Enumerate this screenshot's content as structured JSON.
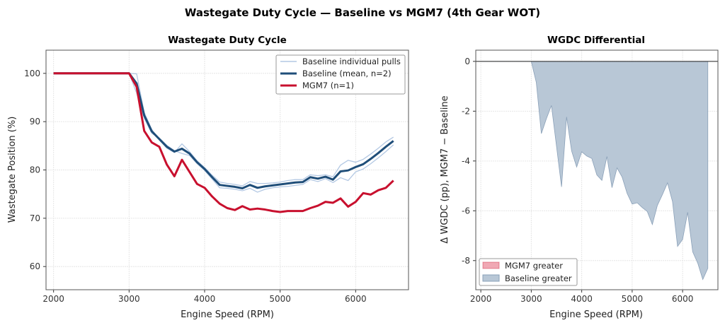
{
  "suptitle": "Wastegate Duty Cycle — Baseline vs MGM7 (4th Gear WOT)",
  "colors": {
    "baseline_pulls": "#b3c8e3",
    "baseline_mean": "#1f4e79",
    "mgm7": "#c8102e",
    "fill_baseline": "#b8c7d6",
    "fill_baseline_edge": "#8aa0b8",
    "fill_mgm7": "#f0a8b4"
  },
  "chart_data": [
    {
      "type": "line",
      "title": "Wastegate Duty Cycle",
      "xlabel": "Engine Speed (RPM)",
      "ylabel": "Wastegate Position (%)",
      "xlim": [
        1900,
        6700
      ],
      "ylim": [
        55.2,
        104.8
      ],
      "xticks": [
        2000,
        3000,
        4000,
        5000,
        6000
      ],
      "yticks": [
        60,
        70,
        80,
        90,
        100
      ],
      "grid": true,
      "legend_placement": "upper right",
      "x": [
        2000,
        2100,
        2200,
        2300,
        2400,
        2500,
        2600,
        2700,
        2800,
        2900,
        3000,
        3100,
        3200,
        3300,
        3400,
        3500,
        3600,
        3700,
        3800,
        3900,
        4000,
        4100,
        4200,
        4300,
        4400,
        4500,
        4600,
        4700,
        4800,
        4900,
        5000,
        5100,
        5200,
        5300,
        5400,
        5500,
        5600,
        5700,
        5800,
        5900,
        6000,
        6100,
        6200,
        6300,
        6400,
        6500
      ],
      "series": [
        {
          "name": "Baseline individual pulls",
          "key": "pull1",
          "values": [
            100,
            100,
            100,
            100,
            100,
            100,
            100,
            100,
            100,
            100,
            100,
            99.9,
            91.9,
            88.4,
            86.2,
            84.5,
            83.6,
            85.4,
            83.8,
            81.9,
            80.5,
            78.9,
            77.5,
            77.2,
            77.0,
            76.7,
            77.6,
            77.2,
            77.2,
            77.3,
            77.5,
            77.8,
            78.0,
            78.0,
            79.0,
            78.8,
            79.0,
            78.6,
            81.0,
            82.0,
            81.6,
            82.2,
            83.3,
            84.5,
            85.8,
            86.8
          ]
        },
        {
          "name": "",
          "key": "pull2",
          "values": [
            100,
            100,
            100,
            100,
            100,
            100,
            100,
            100,
            100,
            100,
            100,
            95.9,
            90.7,
            87.6,
            86.6,
            85.1,
            84.0,
            83.4,
            83.0,
            81.3,
            79.9,
            78.1,
            76.3,
            76.2,
            76.0,
            75.7,
            76.2,
            75.4,
            76.0,
            76.3,
            76.5,
            76.6,
            76.8,
            77.0,
            78.0,
            77.6,
            78.2,
            77.4,
            78.4,
            77.8,
            79.6,
            80.2,
            81.3,
            82.5,
            83.8,
            85.2
          ]
        },
        {
          "name": "Baseline (mean, n=2)",
          "key": "mean",
          "values": [
            100,
            100,
            100,
            100,
            100,
            100,
            100,
            100,
            100,
            100,
            100,
            97.9,
            91.3,
            88.0,
            86.4,
            84.8,
            83.8,
            84.4,
            83.4,
            81.6,
            80.2,
            78.5,
            76.9,
            76.7,
            76.5,
            76.2,
            76.9,
            76.3,
            76.6,
            76.8,
            77.0,
            77.2,
            77.4,
            77.5,
            78.5,
            78.2,
            78.6,
            78.0,
            79.7,
            79.9,
            80.6,
            81.2,
            82.3,
            83.5,
            84.8,
            86.0
          ]
        },
        {
          "name": "MGM7 (n=1)",
          "key": "mgm7",
          "values": [
            100,
            100,
            100,
            100,
            100,
            100,
            100,
            100,
            100,
            100,
            100,
            97.2,
            88.1,
            85.7,
            84.8,
            81.1,
            78.7,
            82.1,
            79.6,
            77.1,
            76.3,
            74.5,
            73.0,
            72.1,
            71.7,
            72.5,
            71.8,
            72.0,
            71.8,
            71.5,
            71.3,
            71.5,
            71.5,
            71.5,
            72.1,
            72.6,
            73.4,
            73.2,
            74.1,
            72.4,
            73.4,
            75.2,
            74.9,
            75.8,
            76.3,
            77.8
          ]
        }
      ]
    },
    {
      "type": "area",
      "title": "WGDC Differential",
      "xlabel": "Engine Speed (RPM)",
      "ylabel": "Δ WGDC (pp), MGM7 − Baseline",
      "xlim": [
        1900,
        6700
      ],
      "ylim": [
        -9.17,
        0.45
      ],
      "xticks": [
        2000,
        3000,
        4000,
        5000,
        6000
      ],
      "yticks": [
        0,
        -2,
        -4,
        -6,
        -8
      ],
      "grid": true,
      "zero_line": true,
      "legend_placement": "lower left",
      "legend": [
        "MGM7 greater",
        "Baseline greater"
      ],
      "x": [
        2000,
        2100,
        2200,
        2300,
        2400,
        2500,
        2600,
        2700,
        2800,
        2900,
        3000,
        3100,
        3200,
        3300,
        3400,
        3500,
        3600,
        3700,
        3800,
        3900,
        4000,
        4100,
        4200,
        4300,
        4400,
        4500,
        4600,
        4700,
        4800,
        4900,
        5000,
        5100,
        5200,
        5300,
        5400,
        5500,
        5600,
        5700,
        5800,
        5900,
        6000,
        6100,
        6200,
        6300,
        6400,
        6500
      ],
      "values": [
        0,
        0,
        0,
        0,
        0,
        0,
        0,
        0,
        0,
        0,
        0,
        -0.85,
        -2.9,
        -2.3,
        -1.77,
        -3.4,
        -5.04,
        -2.23,
        -3.6,
        -4.24,
        -3.63,
        -3.8,
        -3.9,
        -4.56,
        -4.78,
        -3.82,
        -5.07,
        -4.28,
        -4.64,
        -5.3,
        -5.73,
        -5.68,
        -5.87,
        -6.03,
        -6.55,
        -5.78,
        -5.35,
        -4.88,
        -5.63,
        -7.43,
        -7.15,
        -6.06,
        -7.65,
        -8.1,
        -8.76,
        -8.31
      ]
    }
  ]
}
